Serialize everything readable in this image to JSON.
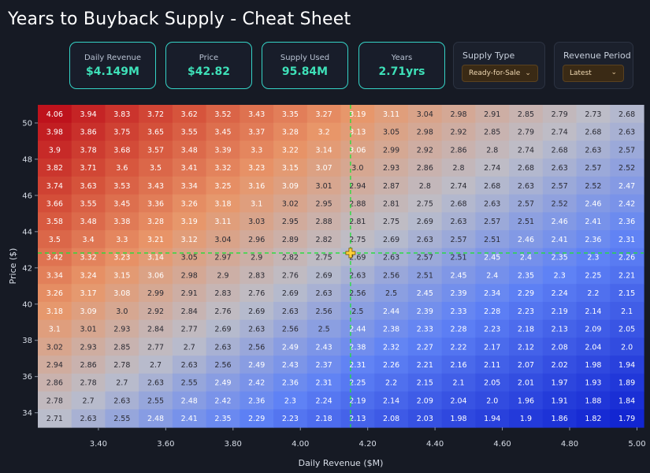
{
  "page": {
    "title": "Years to Buyback Supply - Cheat Sheet"
  },
  "cards": [
    {
      "label": "Daily Revenue",
      "value": "$4.149M"
    },
    {
      "label": "Price",
      "value": "$42.82"
    },
    {
      "label": "Supply Used",
      "value": "95.84M"
    },
    {
      "label": "Years",
      "value": "2.71yrs"
    }
  ],
  "controls": {
    "supply_type": {
      "label": "Supply Type",
      "selected": "Ready-for-Sale"
    },
    "revenue_period": {
      "label": "Revenue Period",
      "selected": "Latest"
    }
  },
  "colors": {
    "accent": "#35d3c6",
    "value_text": "#3ee0b8",
    "crosshair": "#22e03a",
    "marker": "#ffd23a"
  },
  "chart_data": {
    "type": "heatmap",
    "xlabel": "Daily Revenue ($M)",
    "ylabel": "Price ($)",
    "x_ticks": [
      "3.40",
      "3.60",
      "3.80",
      "4.00",
      "4.20",
      "4.40",
      "4.60",
      "4.80",
      "5.00"
    ],
    "y_ticks": [
      "50",
      "48",
      "46",
      "44",
      "42",
      "40",
      "38",
      "36",
      "34"
    ],
    "crosshair": {
      "revenue": 4.149,
      "price": 42.82
    },
    "values": [
      [
        "4.06",
        "3.94",
        "3.83",
        "3.72",
        "3.62",
        "3.52",
        "3.43",
        "3.35",
        "3.27",
        "3.19",
        "3.11",
        "3.04",
        "2.98",
        "2.91",
        "2.85",
        "2.79",
        "2.73",
        "2.68"
      ],
      [
        "3.98",
        "3.86",
        "3.75",
        "3.65",
        "3.55",
        "3.45",
        "3.37",
        "3.28",
        "3.2",
        "3.13",
        "3.05",
        "2.98",
        "2.92",
        "2.85",
        "2.79",
        "2.74",
        "2.68",
        "2.63"
      ],
      [
        "3.9",
        "3.78",
        "3.68",
        "3.57",
        "3.48",
        "3.39",
        "3.3",
        "3.22",
        "3.14",
        "3.06",
        "2.99",
        "2.92",
        "2.86",
        "2.8",
        "2.74",
        "2.68",
        "2.63",
        "2.57"
      ],
      [
        "3.82",
        "3.71",
        "3.6",
        "3.5",
        "3.41",
        "3.32",
        "3.23",
        "3.15",
        "3.07",
        "3.0",
        "2.93",
        "2.86",
        "2.8",
        "2.74",
        "2.68",
        "2.63",
        "2.57",
        "2.52"
      ],
      [
        "3.74",
        "3.63",
        "3.53",
        "3.43",
        "3.34",
        "3.25",
        "3.16",
        "3.09",
        "3.01",
        "2.94",
        "2.87",
        "2.8",
        "2.74",
        "2.68",
        "2.63",
        "2.57",
        "2.52",
        "2.47"
      ],
      [
        "3.66",
        "3.55",
        "3.45",
        "3.36",
        "3.26",
        "3.18",
        "3.1",
        "3.02",
        "2.95",
        "2.88",
        "2.81",
        "2.75",
        "2.68",
        "2.63",
        "2.57",
        "2.52",
        "2.46",
        "2.42"
      ],
      [
        "3.58",
        "3.48",
        "3.38",
        "3.28",
        "3.19",
        "3.11",
        "3.03",
        "2.95",
        "2.88",
        "2.81",
        "2.75",
        "2.69",
        "2.63",
        "2.57",
        "2.51",
        "2.46",
        "2.41",
        "2.36"
      ],
      [
        "3.5",
        "3.4",
        "3.3",
        "3.21",
        "3.12",
        "3.04",
        "2.96",
        "2.89",
        "2.82",
        "2.75",
        "2.69",
        "2.63",
        "2.57",
        "2.51",
        "2.46",
        "2.41",
        "2.36",
        "2.31"
      ],
      [
        "3.42",
        "3.32",
        "3.23",
        "3.14",
        "3.05",
        "2.97",
        "2.9",
        "2.82",
        "2.75",
        "2.69",
        "2.63",
        "2.57",
        "2.51",
        "2.45",
        "2.4",
        "2.35",
        "2.3",
        "2.26"
      ],
      [
        "3.34",
        "3.24",
        "3.15",
        "3.06",
        "2.98",
        "2.9",
        "2.83",
        "2.76",
        "2.69",
        "2.63",
        "2.56",
        "2.51",
        "2.45",
        "2.4",
        "2.35",
        "2.3",
        "2.25",
        "2.21"
      ],
      [
        "3.26",
        "3.17",
        "3.08",
        "2.99",
        "2.91",
        "2.83",
        "2.76",
        "2.69",
        "2.63",
        "2.56",
        "2.5",
        "2.45",
        "2.39",
        "2.34",
        "2.29",
        "2.24",
        "2.2",
        "2.15"
      ],
      [
        "3.18",
        "3.09",
        "3.0",
        "2.92",
        "2.84",
        "2.76",
        "2.69",
        "2.63",
        "2.56",
        "2.5",
        "2.44",
        "2.39",
        "2.33",
        "2.28",
        "2.23",
        "2.19",
        "2.14",
        "2.1"
      ],
      [
        "3.1",
        "3.01",
        "2.93",
        "2.84",
        "2.77",
        "2.69",
        "2.63",
        "2.56",
        "2.5",
        "2.44",
        "2.38",
        "2.33",
        "2.28",
        "2.23",
        "2.18",
        "2.13",
        "2.09",
        "2.05"
      ],
      [
        "3.02",
        "2.93",
        "2.85",
        "2.77",
        "2.7",
        "2.63",
        "2.56",
        "2.49",
        "2.43",
        "2.38",
        "2.32",
        "2.27",
        "2.22",
        "2.17",
        "2.12",
        "2.08",
        "2.04",
        "2.0"
      ],
      [
        "2.94",
        "2.86",
        "2.78",
        "2.7",
        "2.63",
        "2.56",
        "2.49",
        "2.43",
        "2.37",
        "2.31",
        "2.26",
        "2.21",
        "2.16",
        "2.11",
        "2.07",
        "2.02",
        "1.98",
        "1.94"
      ],
      [
        "2.86",
        "2.78",
        "2.7",
        "2.63",
        "2.55",
        "2.49",
        "2.42",
        "2.36",
        "2.31",
        "2.25",
        "2.2",
        "2.15",
        "2.1",
        "2.05",
        "2.01",
        "1.97",
        "1.93",
        "1.89"
      ],
      [
        "2.78",
        "2.7",
        "2.63",
        "2.55",
        "2.48",
        "2.42",
        "2.36",
        "2.3",
        "2.24",
        "2.19",
        "2.14",
        "2.09",
        "2.04",
        "2.0",
        "1.96",
        "1.91",
        "1.88",
        "1.84"
      ],
      [
        "2.71",
        "2.63",
        "2.55",
        "2.48",
        "2.41",
        "2.35",
        "2.29",
        "2.23",
        "2.18",
        "2.13",
        "2.08",
        "2.03",
        "1.98",
        "1.94",
        "1.9",
        "1.86",
        "1.82",
        "1.79"
      ]
    ]
  }
}
